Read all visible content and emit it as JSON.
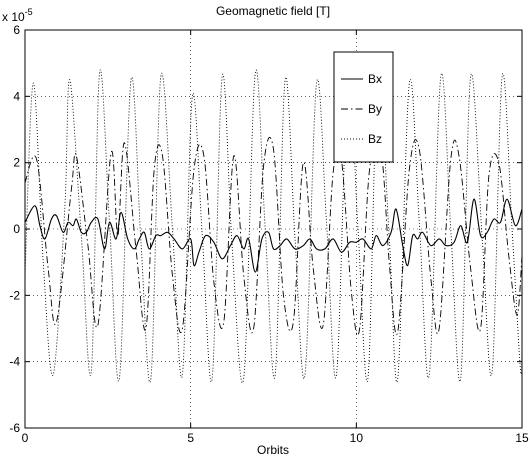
{
  "chart_data": {
    "type": "line",
    "title": "Geomagnetic field [T]",
    "xlabel": "Orbits",
    "ylabel": "",
    "exponent_label": "x 10",
    "exponent_power": "-5",
    "scale_factor": 1e-05,
    "xlim": [
      0,
      15
    ],
    "ylim": [
      -6,
      6
    ],
    "xticks": [
      0,
      5,
      10,
      15
    ],
    "yticks": [
      -6,
      -4,
      -2,
      0,
      2,
      4,
      6
    ],
    "grid": true,
    "legend_position": "top-right",
    "series": [
      {
        "name": "Bx",
        "style": "solid",
        "color": "#000000",
        "x": [
          0.0,
          0.3,
          0.45,
          0.6,
          0.8,
          0.95,
          1.15,
          1.3,
          1.45,
          1.55,
          1.7,
          1.85,
          2.0,
          2.2,
          2.4,
          2.55,
          2.75,
          2.9,
          3.1,
          3.3,
          3.45,
          3.6,
          3.75,
          3.95,
          4.1,
          4.3,
          4.5,
          4.75,
          5.0,
          5.1,
          5.25,
          5.45,
          5.7,
          5.95,
          6.2,
          6.4,
          6.6,
          6.75,
          6.95,
          7.15,
          7.35,
          7.5,
          7.7,
          7.9,
          8.15,
          8.4,
          8.6,
          8.8,
          9.05,
          9.3,
          9.55,
          9.8,
          10.0,
          10.2,
          10.45,
          10.6,
          10.8,
          11.05,
          11.2,
          11.4,
          11.55,
          11.7,
          11.85,
          12.0,
          12.25,
          12.5,
          12.7,
          12.95,
          13.15,
          13.35,
          13.55,
          13.75,
          13.95,
          14.15,
          14.35,
          14.55,
          14.8,
          15.0
        ],
        "y": [
          0.2,
          0.7,
          0.1,
          -0.3,
          0.3,
          0.4,
          -0.1,
          0.2,
          0.1,
          0.3,
          -0.1,
          -0.1,
          0.2,
          0.3,
          -0.6,
          0.2,
          -0.3,
          0.5,
          -0.3,
          -0.6,
          -0.3,
          -0.1,
          -0.6,
          -0.2,
          -0.2,
          -0.1,
          -0.3,
          -0.6,
          -0.3,
          -1.1,
          -0.7,
          -0.2,
          -0.4,
          -0.9,
          -0.5,
          -0.2,
          -0.6,
          -0.3,
          -1.3,
          -0.3,
          -0.1,
          -0.6,
          -0.5,
          -0.3,
          -0.6,
          -0.5,
          -0.3,
          -0.6,
          -0.6,
          -0.3,
          -0.7,
          -0.4,
          -0.4,
          -0.3,
          -0.6,
          -0.2,
          -0.5,
          -0.1,
          0.6,
          -0.5,
          -1.1,
          -0.2,
          -0.3,
          -0.1,
          -0.5,
          -0.3,
          -0.5,
          -0.4,
          0.1,
          -0.4,
          0.9,
          -0.2,
          -0.1,
          0.3,
          0.2,
          0.9,
          0.1,
          0.6
        ]
      },
      {
        "name": "By",
        "style": "dashdot",
        "color": "#000000",
        "phase_points": [
          [
            0.0,
            1.4
          ],
          [
            0.35,
            2.1
          ],
          [
            0.7,
            -1.2
          ],
          [
            0.95,
            -2.8
          ],
          [
            1.4,
            1.2
          ],
          [
            1.55,
            2.2
          ],
          [
            1.9,
            -0.5
          ],
          [
            2.2,
            -2.9
          ],
          [
            2.6,
            2.3
          ],
          [
            2.8,
            -0.2
          ],
          [
            3.0,
            2.6
          ],
          [
            3.35,
            -0.6
          ],
          [
            3.65,
            -3.0
          ],
          [
            3.9,
            1.8
          ],
          [
            4.15,
            2.2
          ],
          [
            4.45,
            -1.4
          ],
          [
            4.75,
            -3.0
          ],
          [
            5.1,
            1.8
          ],
          [
            5.4,
            2.2
          ],
          [
            5.7,
            -1.6
          ],
          [
            6.0,
            -2.8
          ],
          [
            6.3,
            2.2
          ],
          [
            6.6,
            -1.4
          ],
          [
            6.9,
            -3.0
          ],
          [
            7.2,
            1.9
          ],
          [
            7.5,
            2.4
          ],
          [
            7.8,
            -2.0
          ],
          [
            8.1,
            -2.8
          ],
          [
            8.4,
            2.0
          ],
          [
            8.7,
            -1.2
          ],
          [
            9.0,
            -2.9
          ],
          [
            9.3,
            1.7
          ],
          [
            9.55,
            2.1
          ],
          [
            9.85,
            -1.9
          ],
          [
            10.1,
            -3.0
          ],
          [
            10.4,
            1.8
          ],
          [
            10.75,
            2.3
          ],
          [
            11.0,
            -1.1
          ],
          [
            11.25,
            -3.1
          ],
          [
            11.6,
            1.8
          ],
          [
            11.9,
            2.4
          ],
          [
            12.25,
            -1.5
          ],
          [
            12.5,
            -3.0
          ],
          [
            12.85,
            2.1
          ],
          [
            13.1,
            2.2
          ],
          [
            13.45,
            -1.2
          ],
          [
            13.75,
            -3.0
          ],
          [
            14.0,
            1.6
          ],
          [
            14.3,
            2.0
          ],
          [
            14.6,
            -0.8
          ],
          [
            14.85,
            -2.6
          ],
          [
            15.0,
            -0.8
          ]
        ]
      },
      {
        "name": "Bz",
        "style": "dotted",
        "color": "#000000",
        "phase_points": [
          [
            0.0,
            -1.4
          ],
          [
            0.25,
            4.4
          ],
          [
            0.55,
            -1.0
          ],
          [
            0.85,
            -4.4
          ],
          [
            1.2,
            0.6
          ],
          [
            1.35,
            4.5
          ],
          [
            1.7,
            -0.2
          ],
          [
            2.0,
            -4.3
          ],
          [
            2.25,
            4.7
          ],
          [
            2.55,
            0.2
          ],
          [
            2.85,
            -4.5
          ],
          [
            3.2,
            4.5
          ],
          [
            3.5,
            -0.4
          ],
          [
            3.8,
            -4.5
          ],
          [
            4.1,
            4.6
          ],
          [
            4.45,
            0.0
          ],
          [
            4.75,
            -4.4
          ],
          [
            5.05,
            4.0
          ],
          [
            5.35,
            -0.2
          ],
          [
            5.65,
            -4.5
          ],
          [
            5.95,
            4.6
          ],
          [
            6.25,
            -0.5
          ],
          [
            6.6,
            -4.5
          ],
          [
            6.95,
            4.7
          ],
          [
            7.25,
            0.0
          ],
          [
            7.55,
            -4.4
          ],
          [
            7.85,
            4.5
          ],
          [
            8.15,
            -0.3
          ],
          [
            8.45,
            -4.4
          ],
          [
            8.8,
            4.4
          ],
          [
            9.1,
            0.2
          ],
          [
            9.4,
            -4.4
          ],
          [
            9.75,
            4.6
          ],
          [
            10.05,
            0.0
          ],
          [
            10.35,
            -4.5
          ],
          [
            10.65,
            4.6
          ],
          [
            11.0,
            -0.4
          ],
          [
            11.25,
            -4.5
          ],
          [
            11.6,
            4.4
          ],
          [
            11.9,
            0.2
          ],
          [
            12.2,
            -4.4
          ],
          [
            12.55,
            4.6
          ],
          [
            12.85,
            0.0
          ],
          [
            13.15,
            -4.5
          ],
          [
            13.45,
            4.6
          ],
          [
            13.8,
            -0.3
          ],
          [
            14.1,
            -4.3
          ],
          [
            14.4,
            4.6
          ],
          [
            14.7,
            0.0
          ],
          [
            14.95,
            -4.2
          ],
          [
            15.0,
            -3.6
          ]
        ]
      }
    ]
  }
}
